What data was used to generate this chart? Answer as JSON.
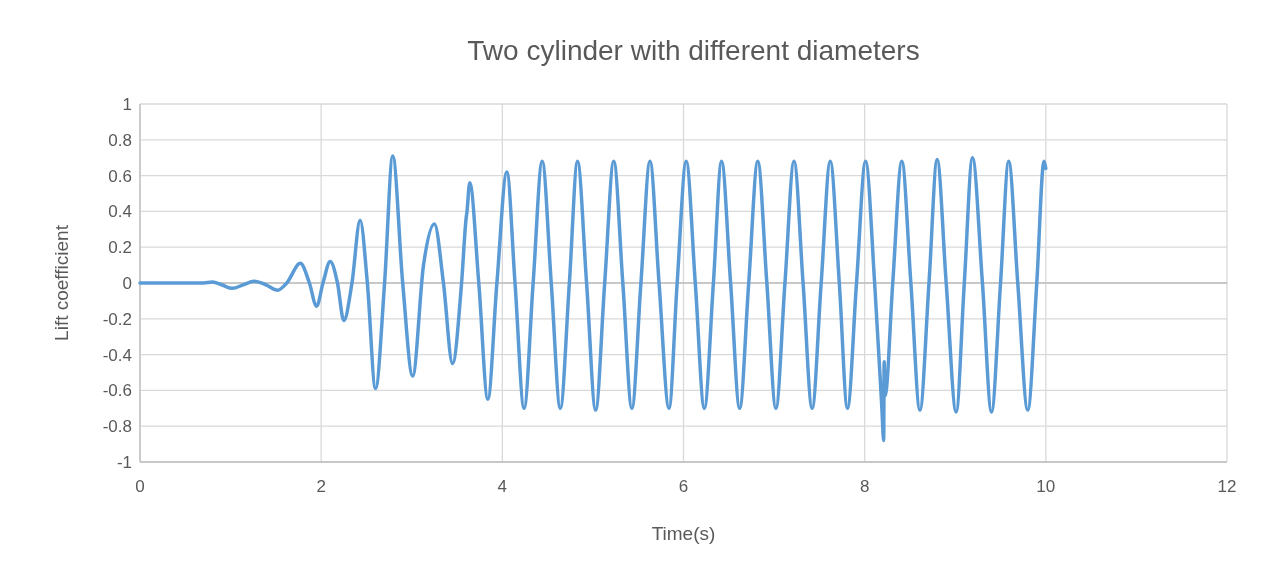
{
  "chart_data": {
    "type": "line",
    "title": "Two cylinder with different diameters",
    "xlabel": "Time(s)",
    "ylabel": "Lift coefficient",
    "xlim": [
      0,
      12
    ],
    "xticks": [
      0,
      2,
      4,
      6,
      8,
      10,
      12
    ],
    "ylim": [
      -1,
      1
    ],
    "yticks": [
      -1,
      -0.8,
      -0.6,
      -0.4,
      -0.2,
      0,
      0.2,
      0.4,
      0.6,
      0.8,
      1
    ],
    "grid": true,
    "series": [
      {
        "color": "#5b9bd5",
        "x": [
          0,
          0.7,
          0.8,
          0.9,
          1.02,
          1.14,
          1.26,
          1.39,
          1.52,
          1.62,
          1.77,
          1.87,
          1.95,
          2.02,
          2.1,
          2.18,
          2.25,
          2.34,
          2.43,
          2.51,
          2.6,
          2.7,
          2.79,
          2.9,
          3.01,
          3.13,
          3.25,
          3.35,
          3.45,
          3.55,
          3.6,
          3.61,
          3.64,
          3.74,
          3.84,
          3.94,
          4.05,
          4.14,
          4.24,
          4.34,
          4.44,
          4.54,
          4.64,
          4.74,
          4.83,
          4.93,
          5.03,
          5.13,
          5.23,
          5.33,
          5.43,
          5.53,
          5.63,
          5.73,
          5.84,
          5.93,
          6.03,
          6.13,
          6.23,
          6.33,
          6.42,
          6.52,
          6.62,
          6.72,
          6.82,
          6.92,
          7.02,
          7.12,
          7.22,
          7.32,
          7.42,
          7.52,
          7.62,
          7.72,
          7.81,
          7.91,
          8.01,
          8.11,
          8.19,
          8.21,
          8.215,
          8.225,
          8.31,
          8.41,
          8.51,
          8.61,
          8.71,
          8.8,
          8.9,
          9.01,
          9.1,
          9.19,
          9.3,
          9.4,
          9.5,
          9.59,
          9.69,
          9.8,
          9.9,
          9.98,
          10
        ],
        "values": [
          0,
          0,
          0.005,
          -0.01,
          -0.03,
          -0.01,
          0.01,
          -0.01,
          -0.04,
          0,
          0.11,
          0,
          -0.13,
          0,
          0.12,
          0,
          -0.21,
          0,
          0.35,
          0,
          -0.59,
          0,
          0.71,
          0,
          -0.52,
          0.1,
          0.33,
          0,
          -0.45,
          0,
          0.36,
          0.4,
          0.56,
          0,
          -0.65,
          0,
          0.62,
          0,
          -0.7,
          0,
          0.68,
          0,
          -0.7,
          0,
          0.68,
          0,
          -0.71,
          0,
          0.68,
          0,
          -0.7,
          0,
          0.68,
          0,
          -0.7,
          0,
          0.68,
          0,
          -0.7,
          0,
          0.68,
          0,
          -0.7,
          0,
          0.68,
          0,
          -0.7,
          0,
          0.68,
          0,
          -0.7,
          0,
          0.68,
          0,
          -0.7,
          0,
          0.68,
          0,
          -0.7,
          -0.88,
          -0.44,
          -0.63,
          0,
          0.68,
          0,
          -0.71,
          0,
          0.69,
          0,
          -0.72,
          0,
          0.7,
          0,
          -0.72,
          0,
          0.68,
          0,
          -0.71,
          0,
          0.68,
          0.64
        ]
      }
    ]
  }
}
